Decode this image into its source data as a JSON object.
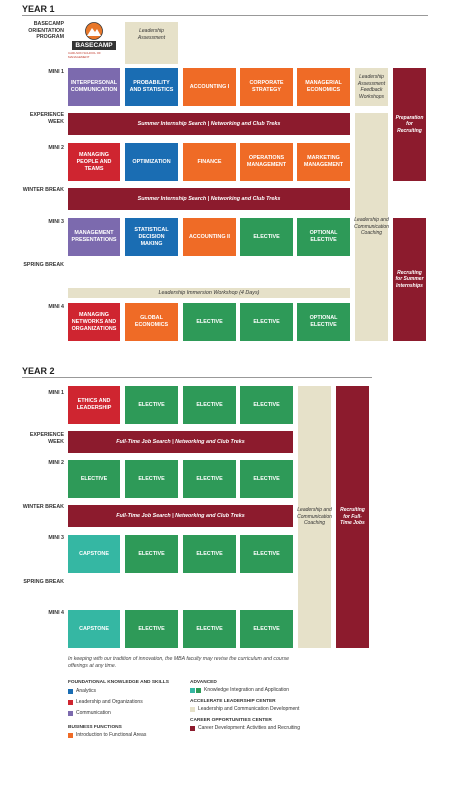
{
  "year1": {
    "title": "YEAR 1",
    "orientation_label": "BASECAMP ORIENTATION PROGRAM",
    "logo": {
      "text": "BASECAMP",
      "tagline": "CARLSON SCHOOL OF MANAGEMENT",
      "icon": "mountain-emblem-icon"
    },
    "leadership_assessment": "Leadership Assessment",
    "rows": {
      "mini1": "MINI 1",
      "experience_week": "EXPERIENCE WEEK",
      "mini2": "MINI 2",
      "winter_break": "WINTER BREAK",
      "mini3": "MINI 3",
      "spring_break": "SPRING BREAK",
      "mini4": "MINI 4"
    },
    "mini1_courses": [
      "INTERPERSONAL COMMUNICATION",
      "PROBABILITY AND STATISTICS",
      "ACCOUNTING I",
      "CORPORATE STRATEGY",
      "MANAGERIAL ECONOMICS"
    ],
    "mini2_courses": [
      "MANAGING PEOPLE AND TEAMS",
      "OPTIMIZATION",
      "FINANCE",
      "OPERATIONS MANAGEMENT",
      "MARKETING MANAGEMENT"
    ],
    "mini3_courses": [
      "MANAGEMENT PRESENTATIONS",
      "STATISTICAL DECISION MAKING",
      "ACCOUNTING II",
      "ELECTIVE",
      "OPTIONAL ELECTIVE"
    ],
    "mini4_courses": [
      "MANAGING NETWORKS AND ORGANIZATIONS",
      "GLOBAL ECONOMICS",
      "ELECTIVE",
      "ELECTIVE",
      "OPTIONAL ELECTIVE"
    ],
    "experience_band": "Summer Internship Search  |  Networking and Club Treks",
    "winter_band": "Summer Internship Search  |  Networking and Club Treks",
    "immersion_band": "Leadership Immersion Workshop (4 Days)",
    "feedback_workshops": "Leadership Assessment Feedback Workshops",
    "coaching": "Leadership and Communication Coaching",
    "prep_recruiting": "Preparation for Recruiting",
    "recruiting_internships": "Recruiting for Summer Internships"
  },
  "year2": {
    "title": "YEAR 2",
    "rows": {
      "mini1": "MINI 1",
      "experience_week": "EXPERIENCE WEEK",
      "mini2": "MINI 2",
      "winter_break": "WINTER BREAK",
      "mini3": "MINI 3",
      "spring_break": "SPRING BREAK",
      "mini4": "MINI 4"
    },
    "mini1_courses": [
      "ETHICS AND LEADERSHIP",
      "ELECTIVE",
      "ELECTIVE",
      "ELECTIVE"
    ],
    "mini2_courses": [
      "ELECTIVE",
      "ELECTIVE",
      "ELECTIVE",
      "ELECTIVE"
    ],
    "mini3_courses": [
      "CAPSTONE",
      "ELECTIVE",
      "ELECTIVE",
      "ELECTIVE"
    ],
    "mini4_courses": [
      "CAPSTONE",
      "ELECTIVE",
      "ELECTIVE",
      "ELECTIVE"
    ],
    "experience_band": "Full-Time Job Search  |  Networking and Club Treks",
    "winter_band": "Full-Time Job Search  |  Networking and Club Treks",
    "coaching": "Leadership and Communication Coaching",
    "recruiting_jobs": "Recruiting for Full-Time Jobs"
  },
  "footnote": "In keeping with our tradition of innovation, the MBA faculty may revise the curriculum and course offerings at any time.",
  "legend": {
    "foundational_title": "FOUNDATIONAL KNOWLEDGE AND SKILLS",
    "analytics": "Analytics",
    "leadership_org": "Leadership and Organizations",
    "communication": "Communication",
    "business_title": "BUSINESS FUNCTIONS",
    "intro_functional": "Introduction to Functional Areas",
    "advanced_title": "ADVANCED",
    "knowledge_integration": "Knowledge Integration and Application",
    "accelerate_title": "ACCELERATE LEADERSHIP CENTER",
    "leadership_comm_dev": "Leadership and Communication Development",
    "career_title": "CAREER OPPORTUNITIES CENTER",
    "career_dev": "Career Development: Activities and Recruiting"
  },
  "colors": {
    "communication": "#7c6aae",
    "analytics": "#1a6db3",
    "functional": "#ef6b26",
    "advanced": "#2e9a58",
    "advanced_teal": "#35b7a3",
    "leadership_org": "#cf2530",
    "career": "#8c1b2d",
    "leadership_dev": "#e6e1c9"
  }
}
